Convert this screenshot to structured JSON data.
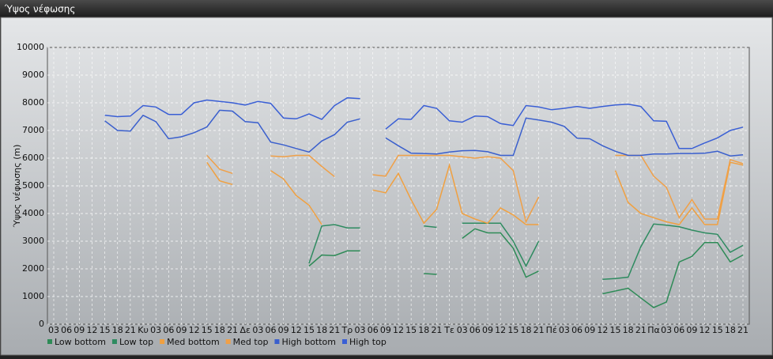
{
  "window_title": "Ύψος νέφωσης",
  "chart_data": {
    "type": "line",
    "y_label": "Ύψος νέφωσης (m)",
    "categories": [
      "03",
      "06",
      "09",
      "12",
      "15",
      "18",
      "21",
      "Κυ",
      "03",
      "06",
      "09",
      "12",
      "15",
      "18",
      "21",
      "Δε",
      "03",
      "06",
      "09",
      "12",
      "15",
      "18",
      "21",
      "Τρ",
      "03",
      "06",
      "09",
      "12",
      "15",
      "18",
      "21",
      "Τε",
      "03",
      "06",
      "09",
      "12",
      "15",
      "18",
      "21",
      "Πέ",
      "03",
      "06",
      "09",
      "12",
      "15",
      "18",
      "21",
      "Πα",
      "03",
      "06",
      "09",
      "12",
      "15",
      "18",
      "21"
    ],
    "ylim": [
      0,
      10000
    ],
    "yticks": [
      0,
      1000,
      2000,
      3000,
      4000,
      5000,
      6000,
      7000,
      8000,
      9000,
      10000
    ],
    "grid": true,
    "series": [
      {
        "name": "Low bottom",
        "color": "#2e8b57",
        "values": [
          null,
          null,
          null,
          null,
          null,
          null,
          null,
          null,
          null,
          null,
          null,
          null,
          null,
          null,
          null,
          null,
          null,
          null,
          null,
          null,
          2100,
          2500,
          2480,
          2650,
          2650,
          null,
          null,
          null,
          null,
          1830,
          1800,
          null,
          3100,
          3450,
          3300,
          3300,
          2750,
          1700,
          1920,
          null,
          null,
          null,
          null,
          1100,
          1200,
          1300,
          950,
          600,
          800,
          2250,
          2450,
          2950,
          2950,
          2250,
          2500
        ]
      },
      {
        "name": "Low top",
        "color": "#2e8b60",
        "values": [
          null,
          null,
          null,
          null,
          null,
          null,
          null,
          null,
          null,
          null,
          null,
          null,
          null,
          null,
          null,
          null,
          null,
          null,
          null,
          null,
          2200,
          3550,
          3600,
          3480,
          3480,
          null,
          null,
          null,
          null,
          3550,
          3500,
          null,
          3650,
          3650,
          3650,
          3650,
          3000,
          2100,
          3000,
          null,
          null,
          null,
          null,
          1620,
          1650,
          1700,
          2800,
          3620,
          3580,
          3520,
          3400,
          3300,
          3250,
          2600,
          2850
        ]
      },
      {
        "name": "Med bottom",
        "color": "#f0a040",
        "values": [
          null,
          null,
          null,
          null,
          null,
          null,
          null,
          null,
          null,
          null,
          null,
          null,
          5850,
          5180,
          5050,
          null,
          null,
          5550,
          5250,
          4650,
          4300,
          3600,
          null,
          null,
          null,
          4850,
          4750,
          5450,
          4500,
          3650,
          4150,
          5750,
          4000,
          3800,
          3650,
          4200,
          3950,
          3600,
          3600,
          null,
          null,
          null,
          null,
          null,
          5550,
          4400,
          4000,
          3850,
          3700,
          3600,
          4200,
          3600,
          3600,
          5850,
          5750
        ]
      },
      {
        "name": "Med top",
        "color": "#f0a048",
        "values": [
          null,
          null,
          null,
          null,
          null,
          null,
          null,
          null,
          null,
          null,
          null,
          null,
          6100,
          5600,
          5450,
          null,
          null,
          6080,
          6050,
          6100,
          6100,
          5700,
          5330,
          null,
          null,
          5400,
          5350,
          6100,
          6100,
          6100,
          6100,
          6100,
          6050,
          6000,
          6050,
          6000,
          5550,
          3700,
          4600,
          null,
          null,
          null,
          null,
          null,
          6100,
          6100,
          6100,
          5350,
          4950,
          3850,
          4500,
          3800,
          3800,
          5950,
          5800
        ]
      },
      {
        "name": "High bottom",
        "color": "#3a5fcd",
        "values": [
          null,
          null,
          null,
          null,
          7350,
          7000,
          6980,
          7550,
          7320,
          6700,
          6770,
          6920,
          7130,
          7730,
          7700,
          7320,
          7280,
          6580,
          6480,
          6350,
          6220,
          6620,
          6850,
          7300,
          7420,
          null,
          6730,
          6450,
          6180,
          6170,
          6150,
          6220,
          6270,
          6280,
          6230,
          6100,
          6100,
          7450,
          7380,
          7300,
          7150,
          6720,
          6700,
          6450,
          6250,
          6100,
          6100,
          6150,
          6150,
          6170,
          6170,
          6180,
          6250,
          6080,
          6120
        ]
      },
      {
        "name": "High top",
        "color": "#3a5fd5",
        "values": [
          null,
          null,
          null,
          null,
          7550,
          7500,
          7520,
          7900,
          7850,
          7580,
          7580,
          8000,
          8100,
          8050,
          8000,
          7920,
          8050,
          7980,
          7450,
          7420,
          7600,
          7400,
          7900,
          8180,
          8150,
          null,
          7050,
          7420,
          7400,
          7900,
          7800,
          7350,
          7300,
          7520,
          7500,
          7250,
          7180,
          7900,
          7850,
          7750,
          7800,
          7870,
          7800,
          7870,
          7920,
          7950,
          7870,
          7350,
          7330,
          6350,
          6350,
          6550,
          6730,
          7000,
          7120
        ]
      }
    ]
  }
}
